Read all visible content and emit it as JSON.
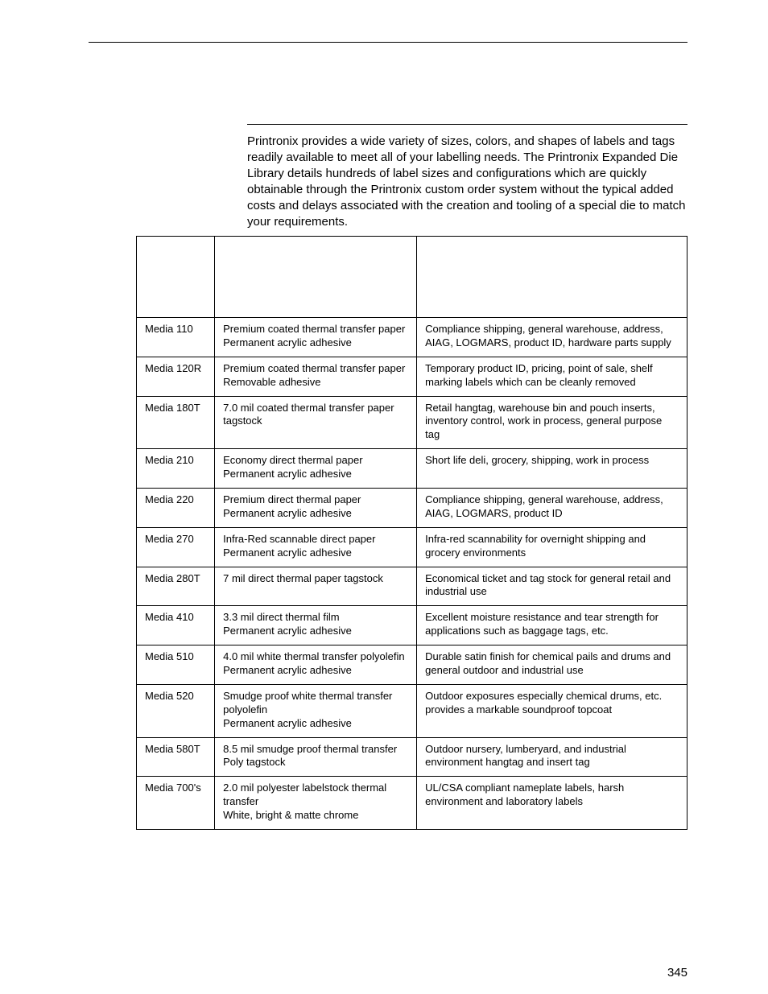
{
  "page_number": "345",
  "intro_text": "Printronix provides a wide variety of sizes, colors, and shapes of labels and tags readily available to meet all of your labelling needs. The Printronix Expanded Die Library details hundreds of label sizes and configurations which are quickly obtainable through the Printronix custom order system without the typical added costs and delays associated with the creation and tooling of a special die to match your requirements.",
  "table": {
    "columns": [
      "",
      "",
      ""
    ],
    "col_widths_pct": [
      14.2,
      36.7,
      49.1
    ],
    "rows": [
      {
        "media": "Media 110",
        "desc": [
          "Premium coated thermal transfer paper",
          "Permanent acrylic adhesive"
        ],
        "apps": [
          "Compliance shipping, general warehouse, address, AIAG, LOGMARS, product ID, hardware parts supply"
        ]
      },
      {
        "media": "Media 120R",
        "desc": [
          "Premium coated thermal transfer paper",
          "Removable adhesive"
        ],
        "apps": [
          "Temporary product ID, pricing, point of sale, shelf marking labels which can be cleanly removed"
        ]
      },
      {
        "media": "Media 180T",
        "desc": [
          "7.0 mil coated thermal transfer paper tagstock"
        ],
        "apps": [
          "Retail hangtag, warehouse bin and pouch inserts, inventory control, work in process, general purpose tag"
        ]
      },
      {
        "media": "Media 210",
        "desc": [
          "Economy direct thermal paper",
          "Permanent acrylic adhesive"
        ],
        "apps": [
          "Short life deli, grocery, shipping, work in process"
        ]
      },
      {
        "media": "Media 220",
        "desc": [
          "Premium direct thermal paper",
          "Permanent acrylic adhesive"
        ],
        "apps": [
          "Compliance shipping, general warehouse, address, AIAG, LOGMARS, product ID"
        ]
      },
      {
        "media": "Media 270",
        "desc": [
          "Infra-Red scannable direct paper",
          "Permanent acrylic adhesive"
        ],
        "apps": [
          "Infra-red scannability for overnight shipping and grocery environments"
        ]
      },
      {
        "media": "Media 280T",
        "desc": [
          "7 mil direct thermal paper tagstock"
        ],
        "apps": [
          "Economical ticket and tag stock for general retail and industrial use"
        ]
      },
      {
        "media": "Media 410",
        "desc": [
          "3.3 mil direct thermal film",
          "Permanent acrylic adhesive"
        ],
        "apps": [
          "Excellent moisture resistance and tear strength for applications such as baggage tags, etc."
        ]
      },
      {
        "media": "Media 510",
        "desc": [
          "4.0 mil white thermal transfer polyolefin",
          "Permanent acrylic adhesive"
        ],
        "apps": [
          "Durable satin finish for chemical pails and drums and general outdoor and industrial use"
        ]
      },
      {
        "media": "Media 520",
        "desc": [
          "Smudge proof white thermal transfer polyolefin",
          "Permanent acrylic adhesive"
        ],
        "apps": [
          "Outdoor exposures especially chemical drums, etc. provides a markable soundproof topcoat"
        ]
      },
      {
        "media": "Media 580T",
        "desc": [
          "8.5 mil smudge proof thermal transfer",
          "Poly tagstock"
        ],
        "apps": [
          "Outdoor nursery, lumberyard, and industrial environment hangtag and insert tag"
        ]
      },
      {
        "media": "Media 700's",
        "desc": [
          "2.0 mil polyester labelstock thermal transfer",
          "White, bright & matte chrome"
        ],
        "apps": [
          "UL/CSA compliant nameplate labels, harsh environment and laboratory labels"
        ]
      }
    ]
  }
}
